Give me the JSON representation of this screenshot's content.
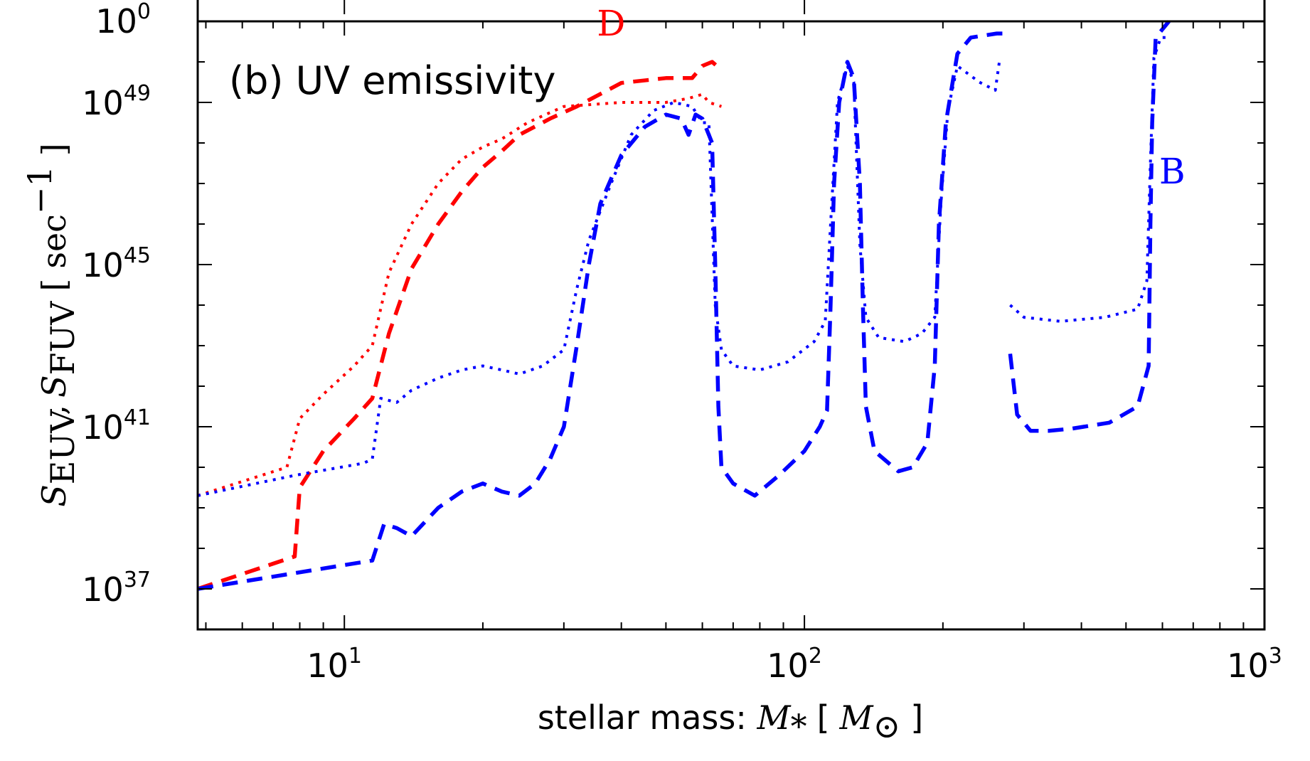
{
  "chart_data": {
    "type": "line",
    "title": "(b) UV emissivity",
    "xlabel": {
      "text": "stellar mass: ",
      "math_symbol": "M",
      "math_subscript": "*",
      "unit_open": "[",
      "unit_symbol": "M",
      "unit_subscript": "⊙",
      "unit_close": "]"
    },
    "ylabel": {
      "s1_symbol": "S",
      "s1_subscript": "EUV",
      "separator": ",",
      "s2_symbol": "S",
      "s2_subscript": "FUV",
      "unit_open": "[",
      "unit_text": "sec",
      "unit_exp": "−1",
      "unit_close": "]"
    },
    "xscale": "log",
    "yscale": "log",
    "xlim": [
      4.8,
      1000
    ],
    "ylim_log10": [
      36.0,
      51.0
    ],
    "x_ticks": [
      {
        "value": 10,
        "base": "10",
        "exp": "1"
      },
      {
        "value": 100,
        "base": "10",
        "exp": "2"
      },
      {
        "value": 1000,
        "base": "10",
        "exp": "3"
      }
    ],
    "y_ticks": [
      {
        "value_log10": 37,
        "base": "10",
        "exp": "37"
      },
      {
        "value_log10": 41,
        "base": "10",
        "exp": "41"
      },
      {
        "value_log10": 45,
        "base": "10",
        "exp": "45"
      },
      {
        "value_log10": 49,
        "base": "10",
        "exp": "49"
      }
    ],
    "upper_panel_tick": {
      "base": "10",
      "exp": "0"
    },
    "curve_labels": [
      {
        "text": "D",
        "color": "#ff0000",
        "x": 38,
        "y_log10": 50.65
      },
      {
        "text": "B",
        "color": "#0000ff",
        "x": 630,
        "y_log10": 47.0
      }
    ],
    "colors": {
      "D": "#ff0000",
      "B": "#0000ff"
    },
    "series": [
      {
        "model": "D",
        "quantity": "EUV",
        "color": "#ff0000",
        "style": "dashed",
        "points": [
          [
            4.8,
            37.0
          ],
          [
            7.8,
            37.8
          ],
          [
            8.0,
            39.5
          ],
          [
            9.0,
            40.4
          ],
          [
            10.5,
            41.2
          ],
          [
            11.5,
            41.7
          ],
          [
            12.5,
            43.3
          ],
          [
            14.0,
            44.9
          ],
          [
            16.0,
            46.0
          ],
          [
            18.0,
            46.8
          ],
          [
            20.0,
            47.4
          ],
          [
            22.0,
            47.8
          ],
          [
            24.0,
            48.2
          ],
          [
            28.0,
            48.6
          ],
          [
            32.0,
            48.9
          ],
          [
            40.0,
            49.48
          ],
          [
            50.0,
            49.6
          ],
          [
            57.0,
            49.6
          ],
          [
            60.0,
            49.9
          ],
          [
            63.0,
            50.0
          ],
          [
            66.0,
            49.8
          ]
        ]
      },
      {
        "model": "D",
        "quantity": "FUV",
        "color": "#ff0000",
        "style": "dotted",
        "points": [
          [
            4.8,
            39.3
          ],
          [
            7.5,
            40.0
          ],
          [
            8.0,
            41.2
          ],
          [
            9.0,
            41.8
          ],
          [
            10.5,
            42.5
          ],
          [
            11.5,
            43.0
          ],
          [
            12.5,
            44.8
          ],
          [
            14.0,
            46.0
          ],
          [
            16.0,
            47.0
          ],
          [
            18.0,
            47.6
          ],
          [
            20.0,
            47.9
          ],
          [
            22.0,
            48.1
          ],
          [
            25.0,
            48.5
          ],
          [
            30.0,
            48.9
          ],
          [
            40.0,
            49.0
          ],
          [
            50.0,
            49.0
          ],
          [
            56.0,
            49.1
          ],
          [
            60.0,
            49.2
          ],
          [
            62.0,
            49.0
          ],
          [
            66.0,
            48.9
          ]
        ]
      },
      {
        "model": "B",
        "quantity": "EUV",
        "color": "#0000ff",
        "style": "dashed",
        "segments": [
          [
            [
              4.8,
              37.0
            ],
            [
              11.5,
              37.7
            ],
            [
              12.2,
              38.6
            ],
            [
              13.0,
              38.5
            ],
            [
              14.0,
              38.3
            ],
            [
              16.0,
              39.0
            ],
            [
              18.0,
              39.4
            ],
            [
              20.0,
              39.6
            ],
            [
              22.0,
              39.4
            ],
            [
              24.0,
              39.3
            ],
            [
              26.0,
              39.6
            ],
            [
              28.0,
              40.2
            ],
            [
              30.0,
              41.0
            ],
            [
              32.0,
              43.0
            ],
            [
              34.0,
              45.0
            ],
            [
              36.0,
              46.5
            ],
            [
              40.0,
              47.7
            ],
            [
              45.0,
              48.4
            ],
            [
              50.0,
              48.7
            ],
            [
              54.0,
              48.6
            ],
            [
              56.0,
              48.2
            ],
            [
              58.0,
              48.7
            ],
            [
              60.0,
              48.6
            ],
            [
              63.0,
              48.0
            ],
            [
              64.0,
              45.0
            ],
            [
              65.0,
              41.5
            ],
            [
              66.0,
              40.0
            ],
            [
              70.0,
              39.6
            ],
            [
              78.0,
              39.3
            ],
            [
              88.0,
              39.8
            ],
            [
              100.0,
              40.4
            ],
            [
              108.0,
              41.0
            ],
            [
              112.0,
              41.4
            ],
            [
              114.0,
              44.0
            ],
            [
              116.0,
              47.0
            ],
            [
              119.0,
              49.0
            ],
            [
              124.0,
              50.0
            ],
            [
              128.0,
              49.6
            ],
            [
              132.0,
              47.0
            ],
            [
              134.0,
              44.0
            ],
            [
              136.0,
              41.5
            ],
            [
              142.0,
              40.4
            ],
            [
              160.0,
              39.9
            ],
            [
              172.0,
              40.0
            ],
            [
              185.0,
              40.6
            ],
            [
              192.0,
              42.5
            ],
            [
              196.0,
              46.0
            ],
            [
              203.0,
              48.5
            ],
            [
              215.0,
              50.2
            ],
            [
              230.0,
              50.6
            ],
            [
              262.0,
              50.7
            ],
            [
              276.0,
              50.7
            ]
          ],
          [
            [
              280.0,
              42.8
            ],
            [
              290.0,
              41.3
            ],
            [
              310.0,
              40.9
            ],
            [
              340.0,
              40.9
            ],
            [
              380.0,
              40.95
            ],
            [
              460.0,
              41.1
            ],
            [
              530.0,
              41.5
            ],
            [
              560.0,
              42.5
            ],
            [
              565.0,
              46.0
            ],
            [
              570.0,
              48.5
            ],
            [
              580.0,
              50.6
            ],
            [
              620.0,
              51.0
            ]
          ]
        ]
      },
      {
        "model": "B",
        "quantity": "FUV",
        "color": "#0000ff",
        "style": "dotted",
        "segments": [
          [
            [
              4.8,
              39.3
            ],
            [
              7.8,
              39.8
            ],
            [
              11.0,
              40.1
            ],
            [
              11.5,
              40.2
            ],
            [
              12.0,
              41.7
            ],
            [
              13.0,
              41.6
            ],
            [
              14.0,
              41.9
            ],
            [
              16.0,
              42.2
            ],
            [
              18.0,
              42.4
            ],
            [
              20.0,
              42.5
            ],
            [
              22.0,
              42.4
            ],
            [
              24.0,
              42.3
            ],
            [
              27.0,
              42.5
            ],
            [
              30.0,
              42.9
            ],
            [
              32.0,
              44.4
            ],
            [
              34.0,
              45.6
            ],
            [
              38.0,
              47.0
            ],
            [
              42.0,
              48.2
            ],
            [
              47.0,
              48.8
            ],
            [
              52.0,
              49.0
            ],
            [
              57.0,
              48.9
            ],
            [
              60.0,
              48.5
            ],
            [
              62.0,
              48.5
            ],
            [
              64.0,
              44.0
            ],
            [
              66.0,
              42.9
            ],
            [
              70.0,
              42.5
            ],
            [
              80.0,
              42.4
            ],
            [
              92.0,
              42.6
            ],
            [
              105.0,
              43.1
            ],
            [
              111.0,
              43.6
            ],
            [
              114.0,
              46.0
            ],
            [
              118.0,
              49.0
            ],
            [
              124.0,
              49.9
            ],
            [
              128.0,
              49.5
            ],
            [
              132.0,
              45.5
            ],
            [
              136.0,
              43.7
            ],
            [
              145.0,
              43.2
            ],
            [
              165.0,
              43.1
            ],
            [
              180.0,
              43.3
            ],
            [
              192.0,
              43.7
            ],
            [
              198.0,
              46.5
            ],
            [
              205.0,
              48.8
            ],
            [
              215.0,
              49.9
            ],
            [
              240.0,
              49.5
            ],
            [
              260.0,
              49.3
            ],
            [
              266.0,
              50.1
            ]
          ],
          [
            [
              280.0,
              44.0
            ],
            [
              300.0,
              43.7
            ],
            [
              360.0,
              43.6
            ],
            [
              450.0,
              43.7
            ],
            [
              530.0,
              43.9
            ],
            [
              555.0,
              44.6
            ],
            [
              565.0,
              47.5
            ],
            [
              575.0,
              50.1
            ],
            [
              595.0,
              50.6
            ],
            [
              625.0,
              50.6
            ]
          ]
        ]
      }
    ]
  }
}
